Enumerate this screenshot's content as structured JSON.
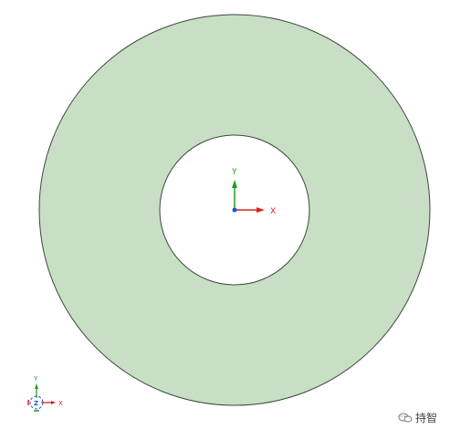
{
  "viewport": {
    "part_fill_color": "#c8dfc6",
    "part_edge_color": "#3b4a3a",
    "background_color": "#ffffff"
  },
  "origin_triad": {
    "x_label": "X",
    "y_label": "Y",
    "x_color": "#e02020",
    "y_color": "#20a020",
    "origin_color": "#2255cc"
  },
  "view_triad": {
    "x_label": "X",
    "y_label": "Y",
    "z_label": "Z"
  },
  "watermark": {
    "text": "持智",
    "icon": "wechat-icon"
  }
}
